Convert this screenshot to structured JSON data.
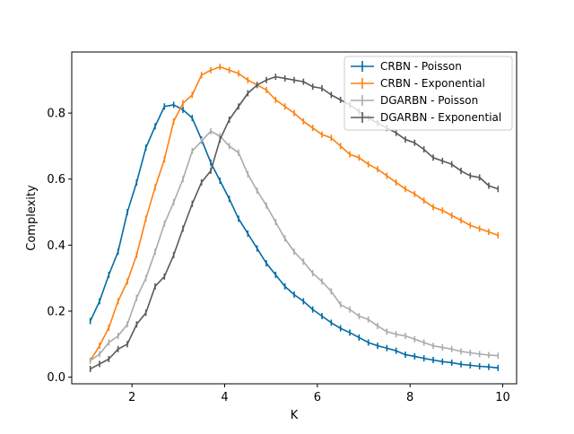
{
  "chart_data": {
    "type": "line",
    "title": "",
    "xlabel": "K",
    "ylabel": "Complexity",
    "xlim": [
      0.7,
      10.3
    ],
    "ylim": [
      -0.02,
      0.985
    ],
    "xticks": [
      2,
      4,
      6,
      8,
      10
    ],
    "yticks": [
      0.0,
      0.2,
      0.4,
      0.6,
      0.8
    ],
    "xtick_labels": [
      "2",
      "4",
      "6",
      "8",
      "10"
    ],
    "ytick_labels": [
      "0.0",
      "0.2",
      "0.4",
      "0.6",
      "0.8"
    ],
    "grid": false,
    "legend_position": "top-right",
    "x": [
      1.1,
      1.3,
      1.5,
      1.7,
      1.9,
      2.1,
      2.3,
      2.5,
      2.7,
      2.9,
      3.1,
      3.3,
      3.5,
      3.7,
      3.9,
      4.1,
      4.3,
      4.5,
      4.7,
      4.9,
      5.1,
      5.3,
      5.5,
      5.7,
      5.9,
      6.1,
      6.3,
      6.5,
      6.7,
      6.9,
      7.1,
      7.3,
      7.5,
      7.7,
      7.9,
      8.1,
      8.3,
      8.5,
      8.7,
      8.9,
      9.1,
      9.3,
      9.5,
      9.7,
      9.9
    ],
    "series": [
      {
        "name": "CRBN - Poisson",
        "color": "#006BA4",
        "values": [
          0.17,
          0.23,
          0.31,
          0.38,
          0.5,
          0.59,
          0.695,
          0.76,
          0.82,
          0.825,
          0.81,
          0.785,
          0.72,
          0.65,
          0.595,
          0.54,
          0.48,
          0.435,
          0.39,
          0.345,
          0.31,
          0.275,
          0.25,
          0.23,
          0.205,
          0.185,
          0.165,
          0.148,
          0.135,
          0.12,
          0.105,
          0.095,
          0.088,
          0.08,
          0.068,
          0.063,
          0.057,
          0.052,
          0.047,
          0.044,
          0.039,
          0.036,
          0.033,
          0.031,
          0.028
        ]
      },
      {
        "name": "CRBN - Exponential",
        "color": "#FF800E",
        "values": [
          0.05,
          0.095,
          0.15,
          0.23,
          0.29,
          0.37,
          0.48,
          0.575,
          0.66,
          0.775,
          0.83,
          0.855,
          0.915,
          0.93,
          0.94,
          0.93,
          0.92,
          0.9,
          0.885,
          0.87,
          0.84,
          0.82,
          0.8,
          0.775,
          0.755,
          0.735,
          0.725,
          0.7,
          0.675,
          0.665,
          0.645,
          0.63,
          0.61,
          0.59,
          0.57,
          0.555,
          0.535,
          0.515,
          0.505,
          0.49,
          0.475,
          0.46,
          0.45,
          0.44,
          0.43
        ]
      },
      {
        "name": "DGARBN - Poisson",
        "color": "#ABABAB",
        "values": [
          0.05,
          0.07,
          0.105,
          0.125,
          0.16,
          0.24,
          0.3,
          0.38,
          0.465,
          0.53,
          0.6,
          0.685,
          0.715,
          0.745,
          0.73,
          0.7,
          0.68,
          0.615,
          0.565,
          0.52,
          0.47,
          0.42,
          0.38,
          0.35,
          0.315,
          0.29,
          0.26,
          0.22,
          0.205,
          0.185,
          0.175,
          0.155,
          0.138,
          0.13,
          0.125,
          0.115,
          0.105,
          0.095,
          0.09,
          0.085,
          0.078,
          0.074,
          0.07,
          0.067,
          0.065
        ]
      },
      {
        "name": "DGARBN - Exponential",
        "color": "#595959",
        "values": [
          0.025,
          0.04,
          0.055,
          0.085,
          0.1,
          0.16,
          0.195,
          0.275,
          0.305,
          0.37,
          0.45,
          0.525,
          0.59,
          0.625,
          0.72,
          0.78,
          0.82,
          0.86,
          0.885,
          0.9,
          0.91,
          0.905,
          0.9,
          0.895,
          0.88,
          0.875,
          0.855,
          0.84,
          0.825,
          0.805,
          0.785,
          0.77,
          0.755,
          0.74,
          0.72,
          0.71,
          0.69,
          0.665,
          0.655,
          0.645,
          0.625,
          0.61,
          0.605,
          0.58,
          0.57
        ]
      }
    ]
  }
}
